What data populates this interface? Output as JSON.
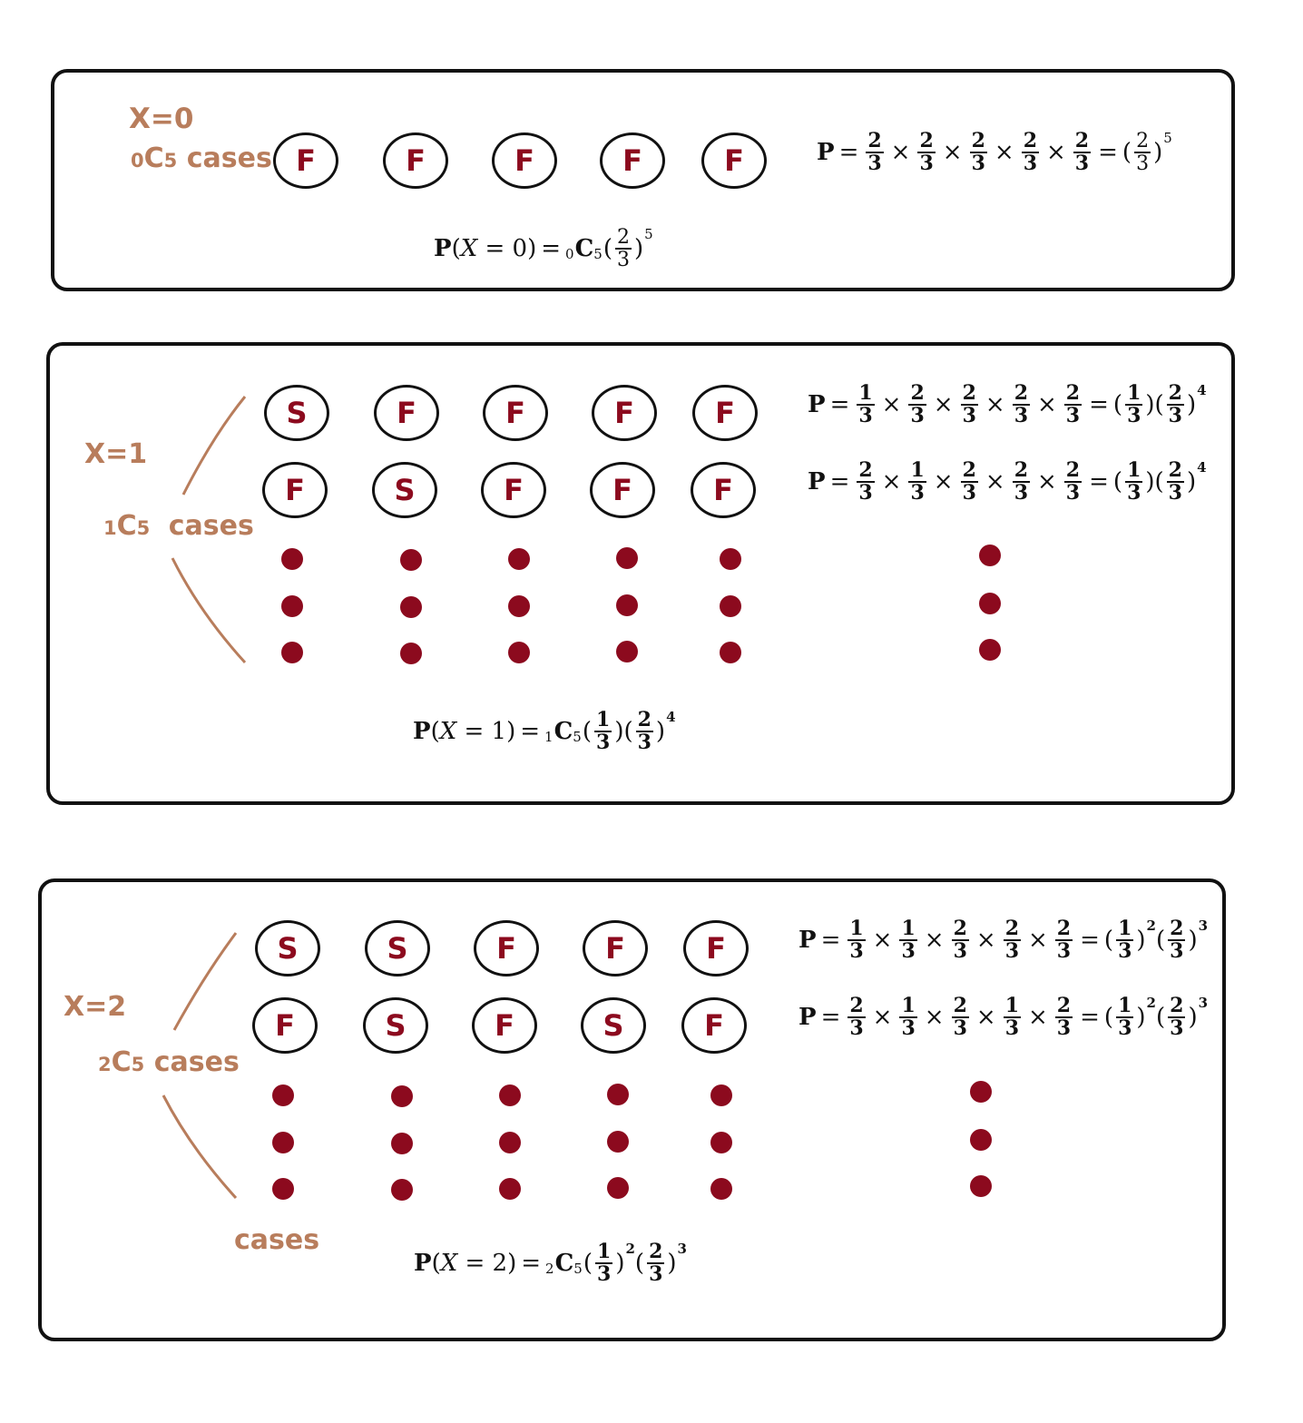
{
  "panel0": {
    "x_label": "X=0",
    "cases_sub": "0",
    "cases_c": "C",
    "cases_n": "5",
    "cases_word": "cases",
    "row": [
      "F",
      "F",
      "F",
      "F",
      "F"
    ],
    "product": {
      "lead": "P",
      "fracs": [
        [
          "2",
          "3"
        ],
        [
          "2",
          "3"
        ],
        [
          "2",
          "3"
        ],
        [
          "2",
          "3"
        ],
        [
          "2",
          "3"
        ]
      ],
      "result_frac": [
        "2",
        "3"
      ],
      "result_exp": "5"
    },
    "final": {
      "lhs": "P",
      "var": "X",
      "eq": "= 0",
      "sub": "0",
      "c": "C",
      "n": "5",
      "frac": [
        "2",
        "3"
      ],
      "exp": "5"
    }
  },
  "panel1": {
    "x_label": "X=1",
    "cases_sub": "1",
    "cases_c": "C",
    "cases_n": "5",
    "cases_word": "cases",
    "rows": [
      [
        "S",
        "F",
        "F",
        "F",
        "F"
      ],
      [
        "F",
        "S",
        "F",
        "F",
        "F"
      ]
    ],
    "products": [
      {
        "lead": "P",
        "fracs": [
          [
            "1",
            "3"
          ],
          [
            "2",
            "3"
          ],
          [
            "2",
            "3"
          ],
          [
            "2",
            "3"
          ],
          [
            "2",
            "3"
          ]
        ],
        "r1": [
          "1",
          "3"
        ],
        "r2": [
          "2",
          "3"
        ],
        "exp": "4"
      },
      {
        "lead": "P",
        "fracs": [
          [
            "2",
            "3"
          ],
          [
            "1",
            "3"
          ],
          [
            "2",
            "3"
          ],
          [
            "2",
            "3"
          ],
          [
            "2",
            "3"
          ]
        ],
        "r1": [
          "1",
          "3"
        ],
        "r2": [
          "2",
          "3"
        ],
        "exp": "4"
      }
    ],
    "final": {
      "lhs": "P",
      "var": "X",
      "eq": "= 1",
      "sub": "1",
      "c": "C",
      "n": "5",
      "f1": [
        "1",
        "3"
      ],
      "f2": [
        "2",
        "3"
      ],
      "exp": "4"
    }
  },
  "panel2": {
    "x_label": "X=2",
    "cases_sub": "2",
    "cases_c": "C",
    "cases_n": "5",
    "cases_word": "cases",
    "extra_cases": "cases",
    "rows": [
      [
        "S",
        "S",
        "F",
        "F",
        "F"
      ],
      [
        "F",
        "S",
        "F",
        "S",
        "F"
      ]
    ],
    "products": [
      {
        "lead": "P",
        "fracs": [
          [
            "1",
            "3"
          ],
          [
            "1",
            "3"
          ],
          [
            "2",
            "3"
          ],
          [
            "2",
            "3"
          ],
          [
            "2",
            "3"
          ]
        ],
        "r1": [
          "1",
          "3"
        ],
        "e1": "2",
        "r2": [
          "2",
          "3"
        ],
        "e2": "3"
      },
      {
        "lead": "P",
        "fracs": [
          [
            "2",
            "3"
          ],
          [
            "1",
            "3"
          ],
          [
            "2",
            "3"
          ],
          [
            "1",
            "3"
          ],
          [
            "2",
            "3"
          ]
        ],
        "r1": [
          "1",
          "3"
        ],
        "e1": "2",
        "r2": [
          "2",
          "3"
        ],
        "e2": "3"
      }
    ],
    "final": {
      "lhs": "P",
      "var": "X",
      "eq": "= 2",
      "sub": "2",
      "c": "C",
      "n": "5",
      "f1": [
        "1",
        "3"
      ],
      "e1": "2",
      "f2": [
        "2",
        "3"
      ],
      "e2": "3"
    }
  },
  "colors": {
    "accent": "#b87d5c",
    "mark": "#8c0a1e",
    "border": "#111111"
  }
}
